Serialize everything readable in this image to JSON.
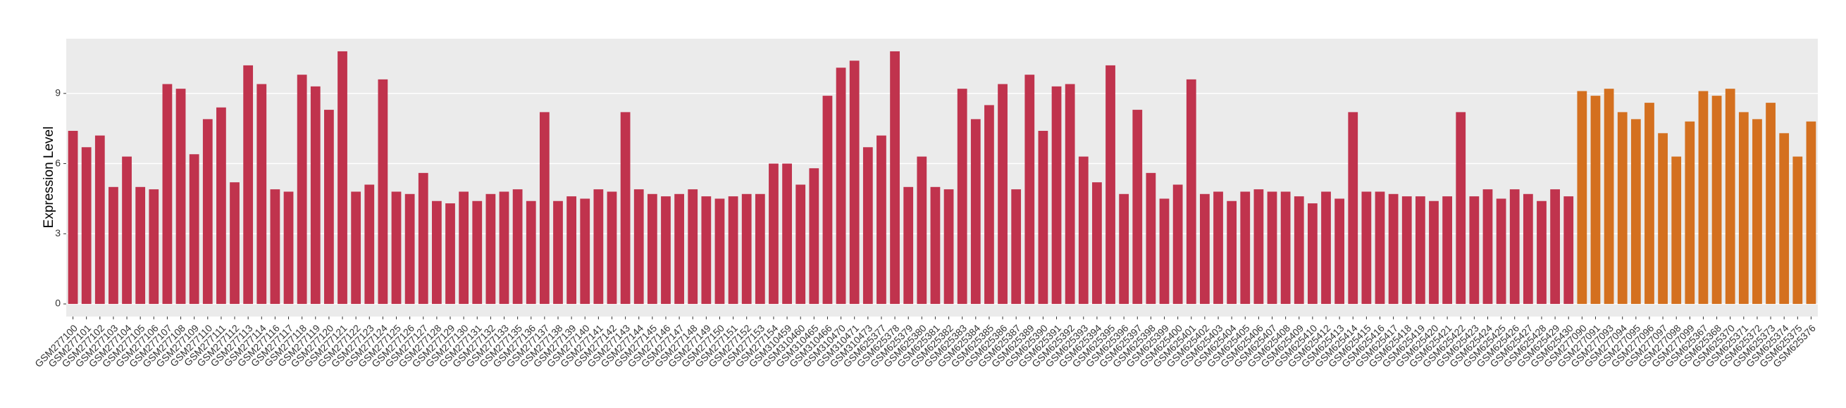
{
  "chart_data": {
    "type": "bar",
    "y_label": "Expression Level",
    "categories": [
      "GSM277100",
      "GSM277101",
      "GSM277102",
      "GSM277103",
      "GSM277104",
      "GSM277105",
      "GSM277106",
      "GSM277107",
      "GSM277108",
      "GSM277109",
      "GSM277110",
      "GSM277111",
      "GSM277112",
      "GSM277113",
      "GSM277114",
      "GSM277116",
      "GSM277117",
      "GSM277118",
      "GSM277119",
      "GSM277120",
      "GSM277121",
      "GSM277122",
      "GSM277123",
      "GSM277124",
      "GSM277125",
      "GSM277126",
      "GSM277127",
      "GSM277128",
      "GSM277129",
      "GSM277130",
      "GSM277131",
      "GSM277132",
      "GSM277133",
      "GSM277135",
      "GSM277136",
      "GSM277137",
      "GSM277138",
      "GSM277139",
      "GSM277140",
      "GSM277141",
      "GSM277142",
      "GSM277143",
      "GSM277144",
      "GSM277145",
      "GSM277146",
      "GSM277147",
      "GSM277148",
      "GSM277149",
      "GSM277150",
      "GSM277151",
      "GSM277152",
      "GSM277153",
      "GSM277154",
      "GSM310459",
      "GSM310460",
      "GSM310465",
      "GSM310466",
      "GSM310470",
      "GSM310471",
      "GSM310473",
      "GSM625377",
      "GSM625378",
      "GSM625379",
      "GSM625380",
      "GSM625381",
      "GSM625382",
      "GSM625383",
      "GSM625384",
      "GSM625385",
      "GSM625386",
      "GSM625387",
      "GSM625389",
      "GSM625390",
      "GSM625391",
      "GSM625392",
      "GSM625393",
      "GSM625394",
      "GSM625395",
      "GSM625396",
      "GSM625397",
      "GSM625398",
      "GSM625399",
      "GSM625400",
      "GSM625401",
      "GSM625402",
      "GSM625403",
      "GSM625404",
      "GSM625405",
      "GSM625406",
      "GSM625407",
      "GSM625408",
      "GSM625409",
      "GSM625410",
      "GSM625412",
      "GSM625413",
      "GSM625414",
      "GSM625415",
      "GSM625416",
      "GSM625417",
      "GSM625418",
      "GSM625419",
      "GSM625420",
      "GSM625421",
      "GSM625422",
      "GSM625423",
      "GSM625424",
      "GSM625425",
      "GSM625426",
      "GSM625427",
      "GSM625428",
      "GSM625429",
      "GSM625430",
      "GSM277090",
      "GSM277091",
      "GSM277093",
      "GSM277094",
      "GSM277095",
      "GSM277096",
      "GSM277097",
      "GSM277098",
      "GSM277099",
      "GSM625367",
      "GSM625368",
      "GSM625370",
      "GSM625371",
      "GSM625372",
      "GSM625373",
      "GSM625374",
      "GSM625375",
      "GSM625376"
    ],
    "series": [
      {
        "color": "#c0334d",
        "values": [
          7.4,
          6.7,
          7.2,
          5.0,
          6.3,
          5.0,
          4.9,
          9.4,
          9.2,
          6.4,
          7.9,
          8.4,
          5.2,
          10.2,
          9.4,
          4.9,
          4.8,
          9.8,
          9.3,
          8.3,
          10.8,
          4.8,
          5.1,
          9.6,
          4.8,
          4.7,
          5.6,
          4.4,
          4.3,
          4.8,
          4.4,
          4.7,
          4.8,
          4.9,
          4.4,
          8.2,
          4.4,
          4.6,
          4.5,
          4.9,
          4.8,
          8.2,
          4.9,
          4.7,
          4.6,
          4.7,
          4.9,
          4.6,
          4.5,
          4.6,
          4.7,
          4.7,
          6.0,
          6.0,
          5.1,
          5.8,
          8.9,
          10.1,
          10.4,
          6.7,
          7.2,
          10.8,
          5.0,
          6.3,
          5.0,
          4.9,
          9.2,
          7.9,
          8.5,
          9.4,
          4.9,
          9.8,
          7.4,
          9.3,
          9.4,
          6.3,
          5.2,
          10.2,
          4.7,
          8.3,
          5.6,
          4.5,
          5.1,
          9.6,
          4.7,
          4.8,
          4.4,
          4.8,
          4.9,
          4.8,
          4.8,
          4.6,
          4.3,
          4.8,
          4.5,
          8.2,
          4.8,
          4.8,
          4.7,
          4.6,
          4.6,
          4.4,
          4.6,
          8.2,
          4.6,
          4.9,
          4.5,
          4.9,
          4.7,
          4.4,
          4.9,
          4.6,
          null,
          null,
          null,
          null,
          null,
          null,
          null,
          null,
          null,
          null,
          null,
          null,
          null,
          null,
          null,
          null,
          null,
          null
        ]
      },
      {
        "color": "#d4701f",
        "values": [
          null,
          null,
          null,
          null,
          null,
          null,
          null,
          null,
          null,
          null,
          null,
          null,
          null,
          null,
          null,
          null,
          null,
          null,
          null,
          null,
          null,
          null,
          null,
          null,
          null,
          null,
          null,
          null,
          null,
          null,
          null,
          null,
          null,
          null,
          null,
          null,
          null,
          null,
          null,
          null,
          null,
          null,
          null,
          null,
          null,
          null,
          null,
          null,
          null,
          null,
          null,
          null,
          null,
          null,
          null,
          null,
          null,
          null,
          null,
          null,
          null,
          null,
          null,
          null,
          null,
          null,
          null,
          null,
          null,
          null,
          null,
          null,
          null,
          null,
          null,
          null,
          null,
          null,
          null,
          null,
          null,
          null,
          null,
          null,
          null,
          null,
          null,
          null,
          null,
          null,
          null,
          null,
          null,
          null,
          null,
          null,
          null,
          null,
          null,
          null,
          null,
          null,
          null,
          null,
          null,
          null,
          null,
          null,
          null,
          null,
          null,
          null,
          9.1,
          8.9,
          9.2,
          8.2,
          7.9,
          8.6,
          7.3,
          6.3,
          7.8,
          9.1,
          8.9,
          9.2,
          8.2,
          7.9,
          8.6,
          7.3,
          6.3,
          7.8
        ]
      }
    ],
    "ylim": [
      -0.54,
      11.34
    ],
    "yticks": [
      0,
      3,
      6,
      9
    ],
    "grid": true
  }
}
